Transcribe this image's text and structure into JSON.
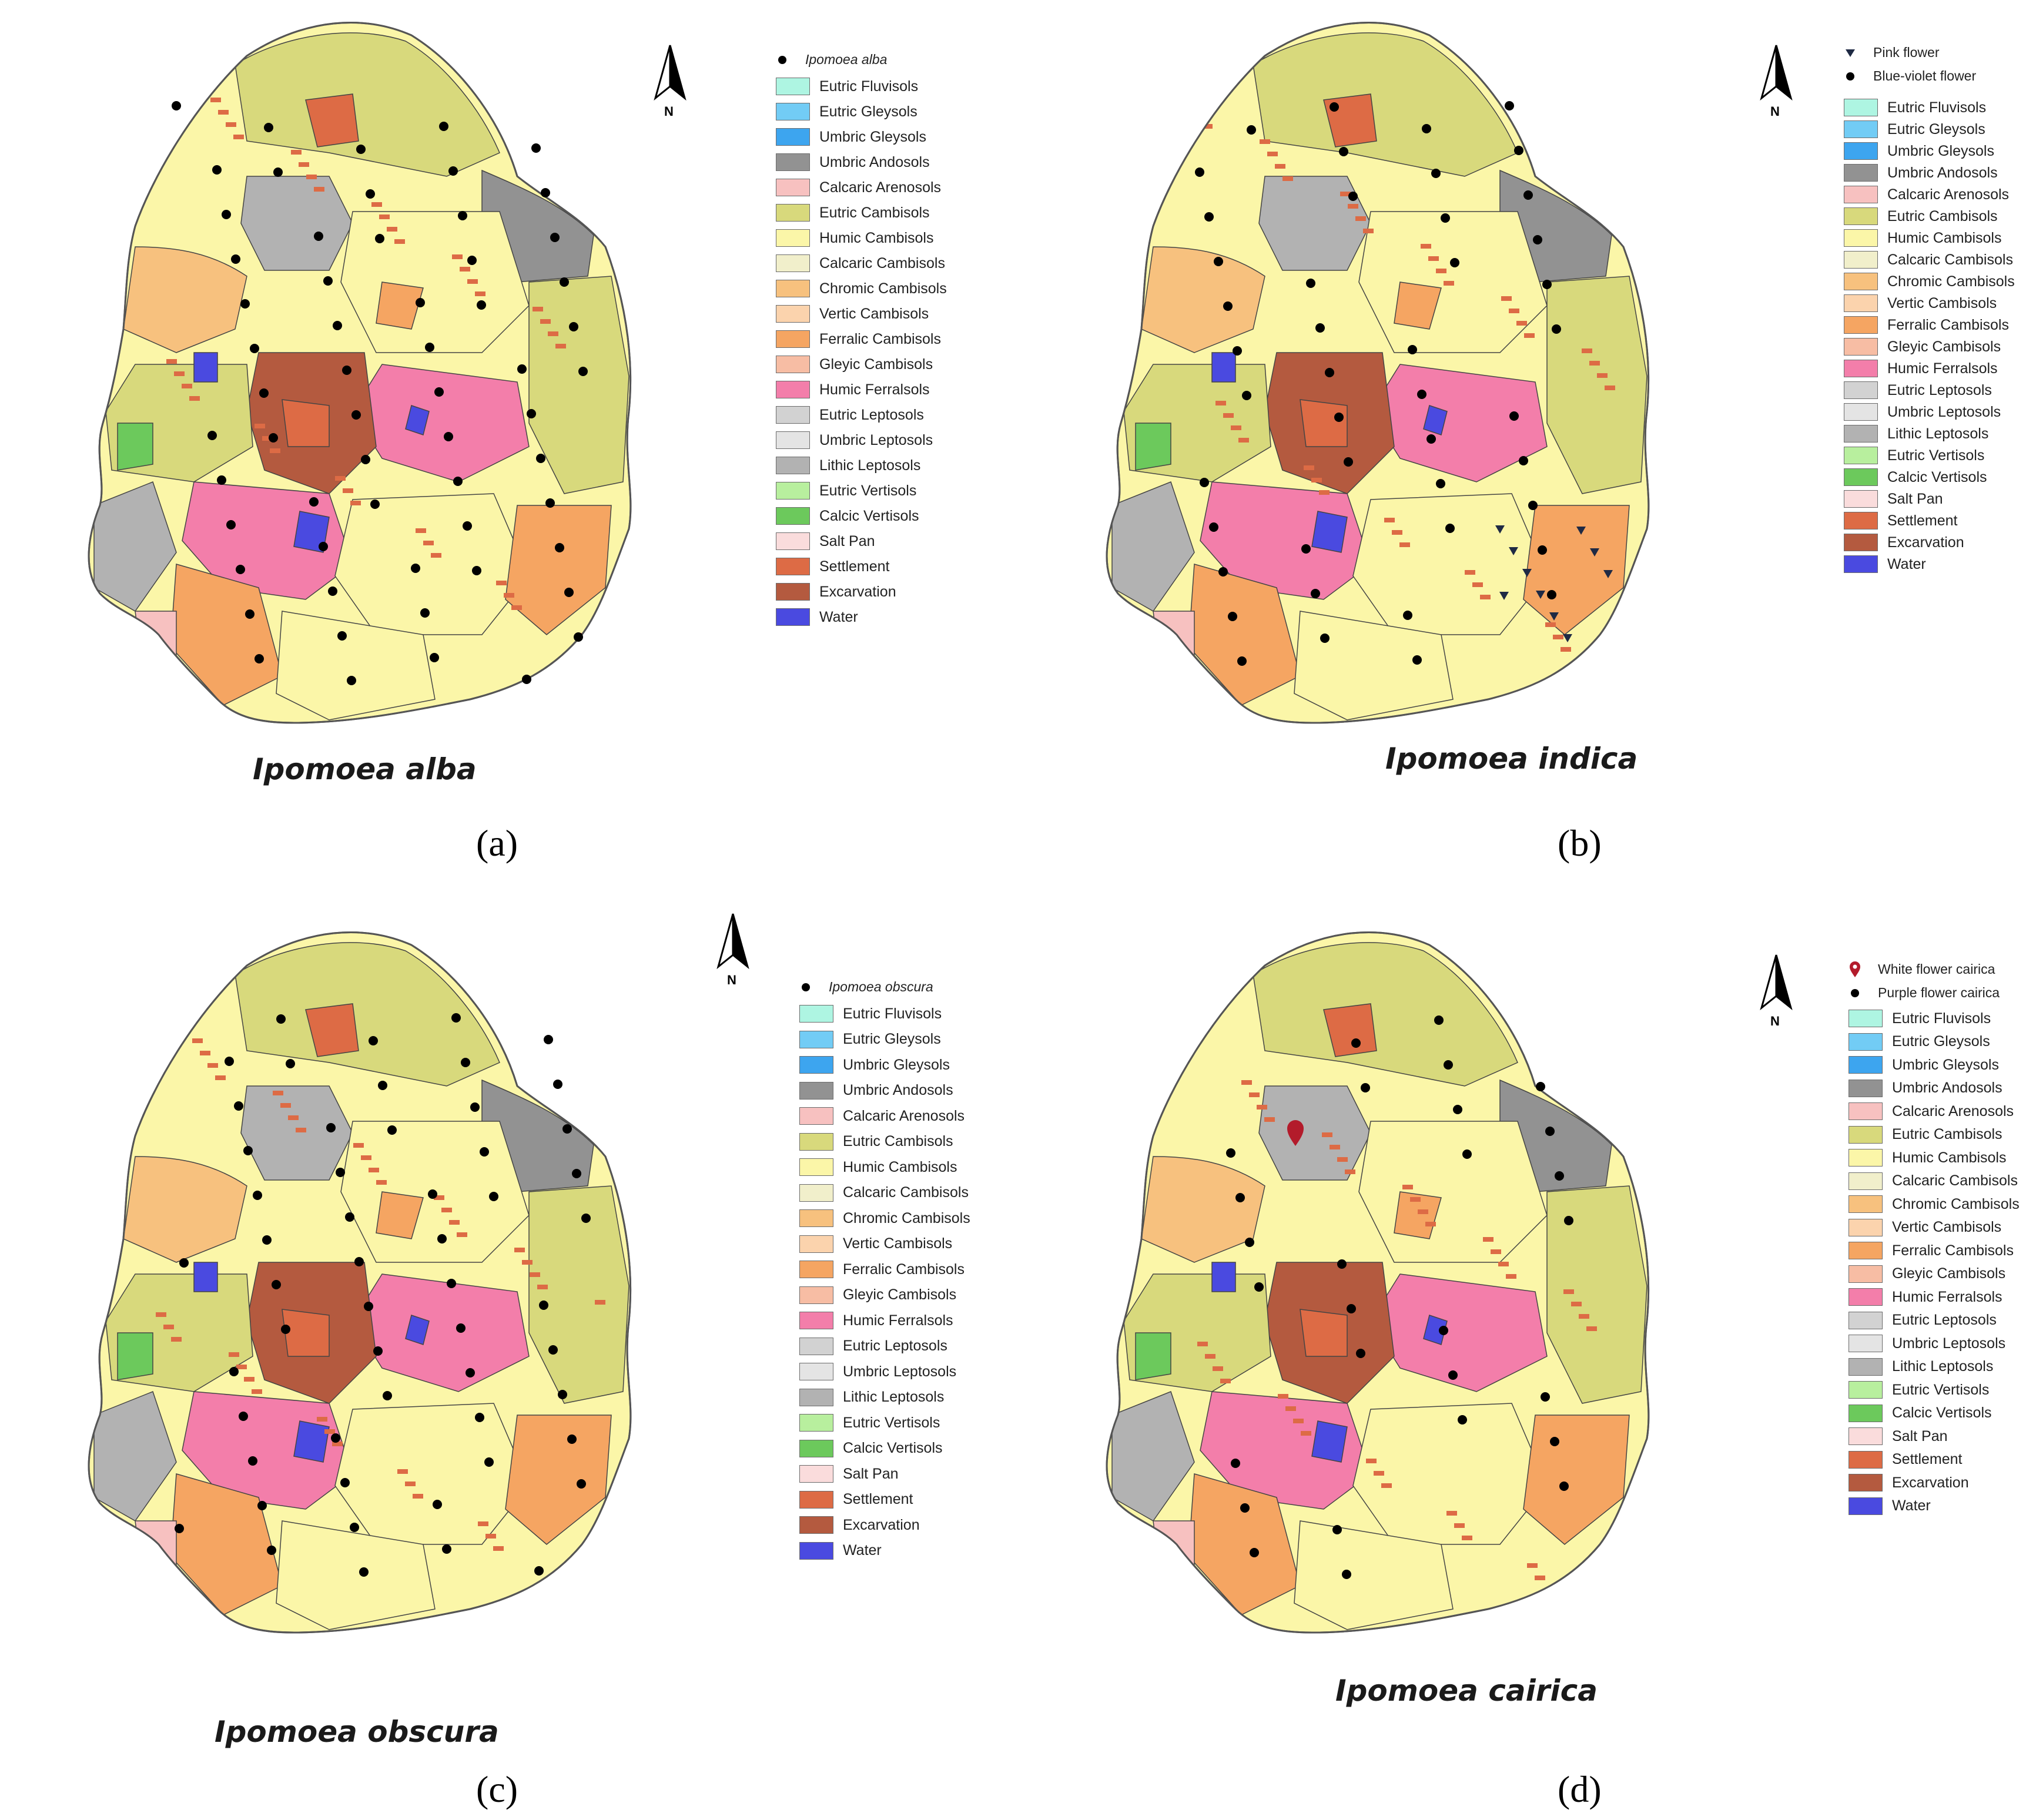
{
  "figure": {
    "north_label": "N",
    "soil_legend": [
      {
        "label": "Eutric Fluvisols",
        "color": "#aef5e2"
      },
      {
        "label": "Eutric Gleysols",
        "color": "#72ccf5"
      },
      {
        "label": "Umbric Gleysols",
        "color": "#3da5ef"
      },
      {
        "label": "Umbric Andosols",
        "color": "#929292"
      },
      {
        "label": "Calcaric Arenosols",
        "color": "#f7c1c0"
      },
      {
        "label": "Eutric Cambisols",
        "color": "#d8d97c"
      },
      {
        "label": "Humic Cambisols",
        "color": "#fbf6a8"
      },
      {
        "label": "Calcaric Cambisols",
        "color": "#f1efcb"
      },
      {
        "label": "Chromic Cambisols",
        "color": "#f7c17e"
      },
      {
        "label": "Vertic Cambisols",
        "color": "#fbd3ad"
      },
      {
        "label": "Ferralic Cambisols",
        "color": "#f5a562"
      },
      {
        "label": "Gleyic Cambisols",
        "color": "#f7bda4"
      },
      {
        "label": "Humic Ferralsols",
        "color": "#f37eaa"
      },
      {
        "label": "Eutric Leptosols",
        "color": "#d2d2d2"
      },
      {
        "label": "Umbric Leptosols",
        "color": "#e4e4e4"
      },
      {
        "label": "Lithic Leptosols",
        "color": "#b2b2b2"
      },
      {
        "label": "Eutric Vertisols",
        "color": "#b8ef9e"
      },
      {
        "label": "Calcic Vertisols",
        "color": "#6cc95c"
      },
      {
        "label": "Salt Pan",
        "color": "#fadcdc"
      },
      {
        "label": "Settlement",
        "color": "#dd6b45"
      },
      {
        "label": "Excarvation",
        "color": "#b45a3f"
      },
      {
        "label": "Water",
        "color": "#4a4ae0"
      }
    ],
    "panels": [
      {
        "id": "a",
        "letter": "(a)",
        "title": "Ipomoea alba",
        "point_legend": [
          {
            "symbol": "dot",
            "label": "Ipomoea alba",
            "italic": true
          }
        ]
      },
      {
        "id": "b",
        "letter": "(b)",
        "title": "Ipomoea indica",
        "point_legend": [
          {
            "symbol": "triangle",
            "label": "Pink flower",
            "italic": false
          },
          {
            "symbol": "dot",
            "label": "Blue-violet flower",
            "italic": false
          }
        ]
      },
      {
        "id": "c",
        "letter": "(c)",
        "title": "Ipomoea obscura",
        "point_legend": [
          {
            "symbol": "dot",
            "label": "Ipomoea obscura",
            "italic": true
          }
        ]
      },
      {
        "id": "d",
        "letter": "(d)",
        "title": "Ipomoea cairica",
        "point_legend": [
          {
            "symbol": "pin",
            "label": "White flower cairica",
            "italic": false
          },
          {
            "symbol": "dot",
            "label": "Purple flower cairica",
            "italic": false
          }
        ]
      }
    ]
  }
}
